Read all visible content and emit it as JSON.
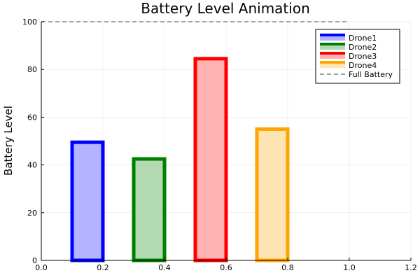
{
  "chart_data": {
    "type": "bar",
    "title": "Battery Level Animation",
    "xlabel": "",
    "ylabel": "Battery Level",
    "xlim": [
      0,
      1.2
    ],
    "ylim": [
      0,
      100
    ],
    "xticks": [
      "0.0",
      "0.2",
      "0.4",
      "0.6",
      "0.8",
      "1.0",
      "1.2"
    ],
    "yticks": [
      "0",
      "20",
      "40",
      "60",
      "80",
      "100"
    ],
    "grid": true,
    "legend_position": "top-right",
    "bar_width": 0.1,
    "series": [
      {
        "name": "Drone1",
        "x": 0.15,
        "value": 49.5,
        "color": "#0000ff",
        "fill": "#b3b3ff"
      },
      {
        "name": "Drone2",
        "x": 0.35,
        "value": 42.5,
        "color": "#008000",
        "fill": "#b3d9b3"
      },
      {
        "name": "Drone3",
        "x": 0.55,
        "value": 84.5,
        "color": "#ff0000",
        "fill": "#ffb3b3"
      },
      {
        "name": "Drone4",
        "x": 0.75,
        "value": 55,
        "color": "#ffa500",
        "fill": "#ffe4b3"
      }
    ],
    "reference_line": {
      "name": "Full Battery",
      "y": 100,
      "x_range": [
        0,
        1.0
      ],
      "color": "#808080",
      "style": "dashed"
    }
  }
}
